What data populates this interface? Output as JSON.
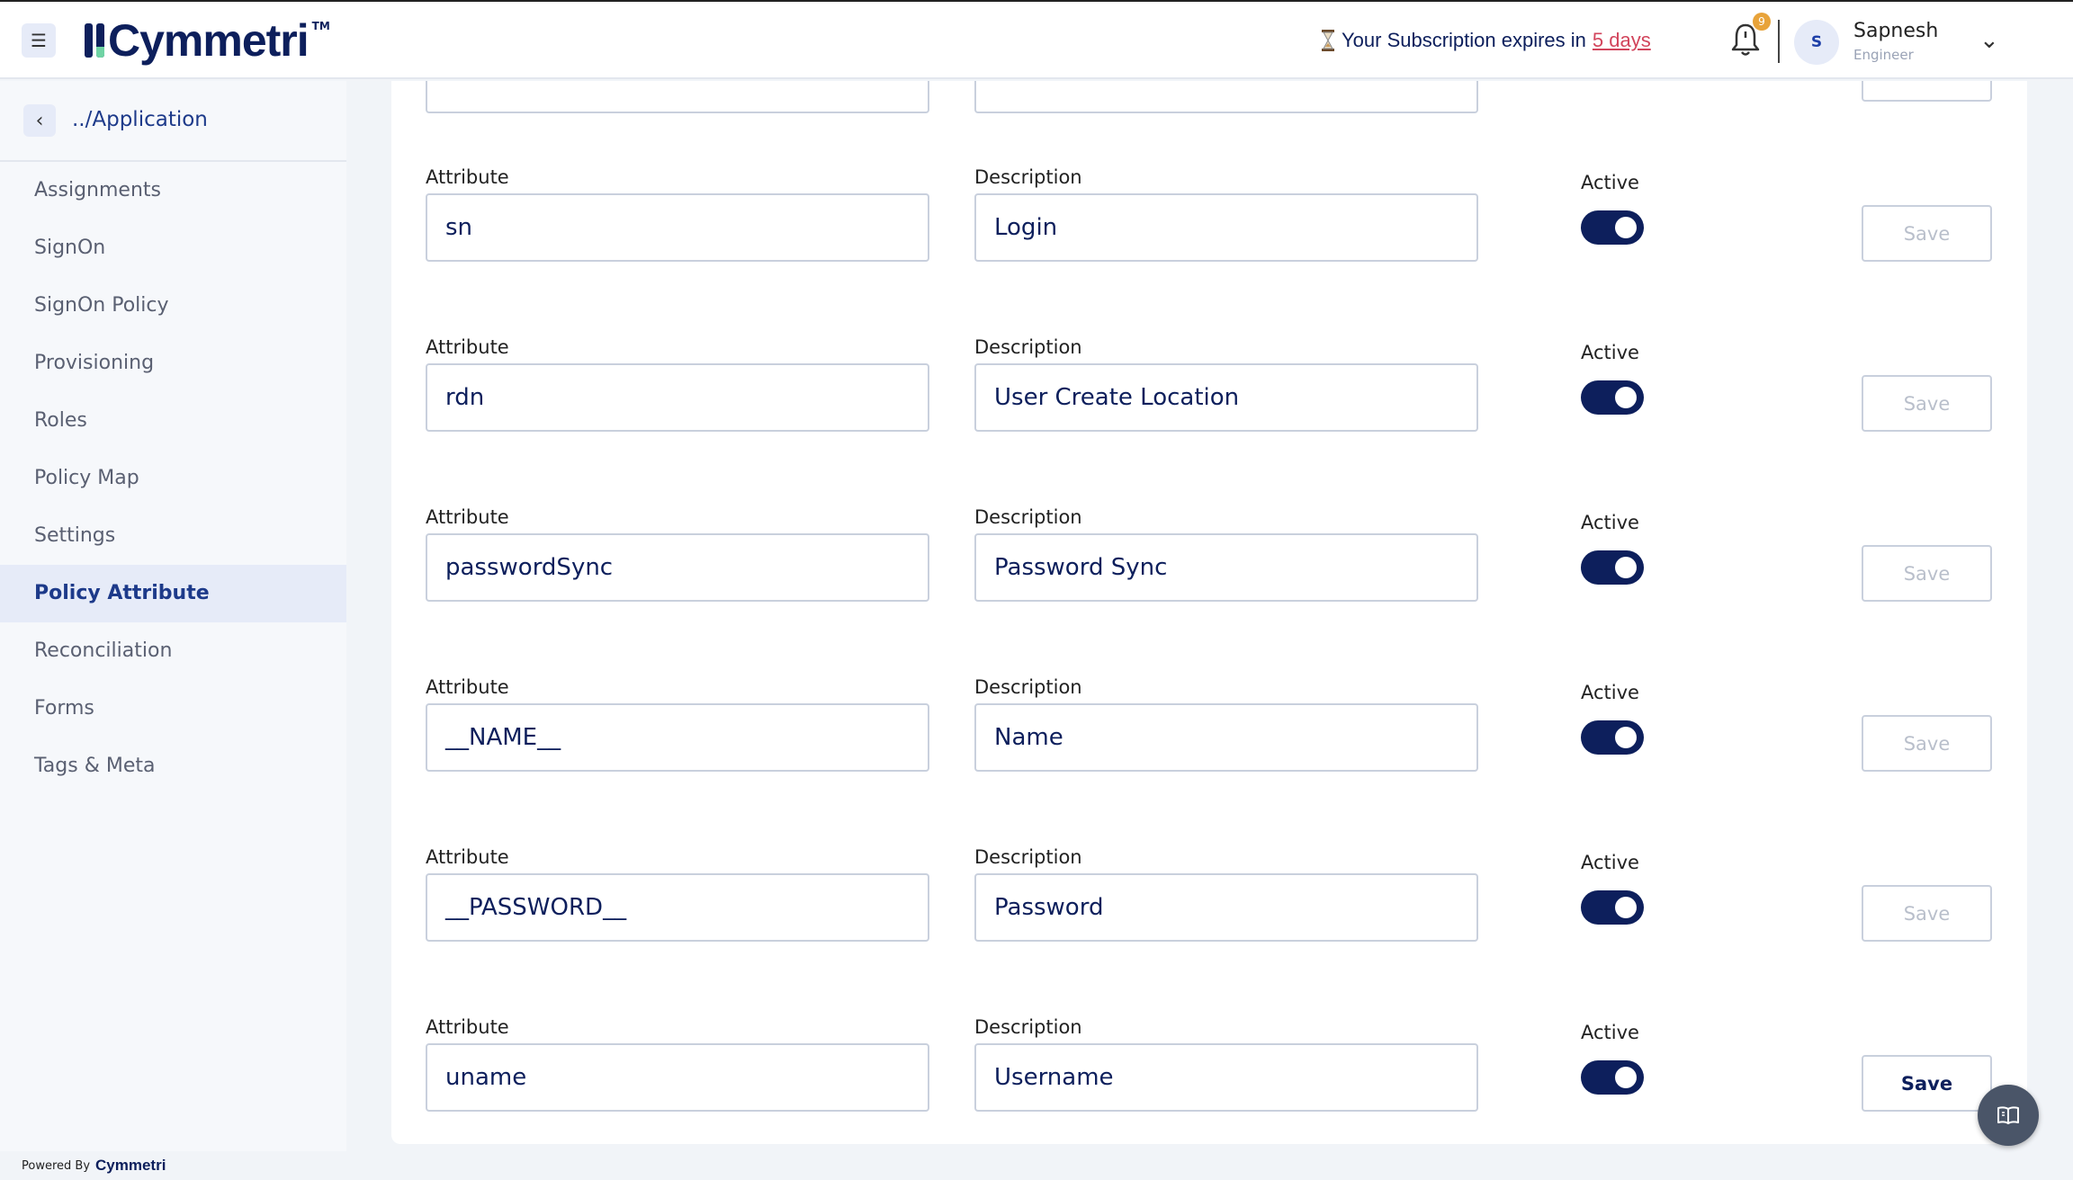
{
  "header": {
    "brand": "Cymmetri",
    "trademark": "TM",
    "subscription_text": "Your Subscription expires in",
    "subscription_link": "5 days",
    "notification_count": "9",
    "user": {
      "initial": "S",
      "name": "Sapnesh",
      "role": "Engineer"
    }
  },
  "sidebar": {
    "breadcrumb": "../Application",
    "items": [
      {
        "label": "Assignments"
      },
      {
        "label": "SignOn"
      },
      {
        "label": "SignOn Policy"
      },
      {
        "label": "Provisioning"
      },
      {
        "label": "Roles"
      },
      {
        "label": "Policy Map"
      },
      {
        "label": "Settings"
      },
      {
        "label": "Policy Attribute",
        "active": true
      },
      {
        "label": "Reconciliation"
      },
      {
        "label": "Forms"
      },
      {
        "label": "Tags & Meta"
      }
    ]
  },
  "labels": {
    "attribute": "Attribute",
    "description": "Description",
    "active": "Active",
    "save": "Save"
  },
  "rows": [
    {
      "attribute": "sn",
      "description": "Login",
      "active": true,
      "save_enabled": false
    },
    {
      "attribute": "rdn",
      "description": "User Create Location",
      "active": true,
      "save_enabled": false
    },
    {
      "attribute": "passwordSync",
      "description": "Password Sync",
      "active": true,
      "save_enabled": false
    },
    {
      "attribute": "__NAME__",
      "description": "Name",
      "active": true,
      "save_enabled": false
    },
    {
      "attribute": "__PASSWORD__",
      "description": "Password",
      "active": true,
      "save_enabled": false
    },
    {
      "attribute": "uname",
      "description": "Username",
      "active": true,
      "save_enabled": true
    }
  ],
  "footer": {
    "powered_by": "Powered By",
    "brand": "Cymmetri"
  },
  "colors": {
    "primary": "#0d1f5c",
    "accent_link": "#d2455c",
    "badge": "#e8a33a",
    "logo_green": "#6fd3a4"
  }
}
